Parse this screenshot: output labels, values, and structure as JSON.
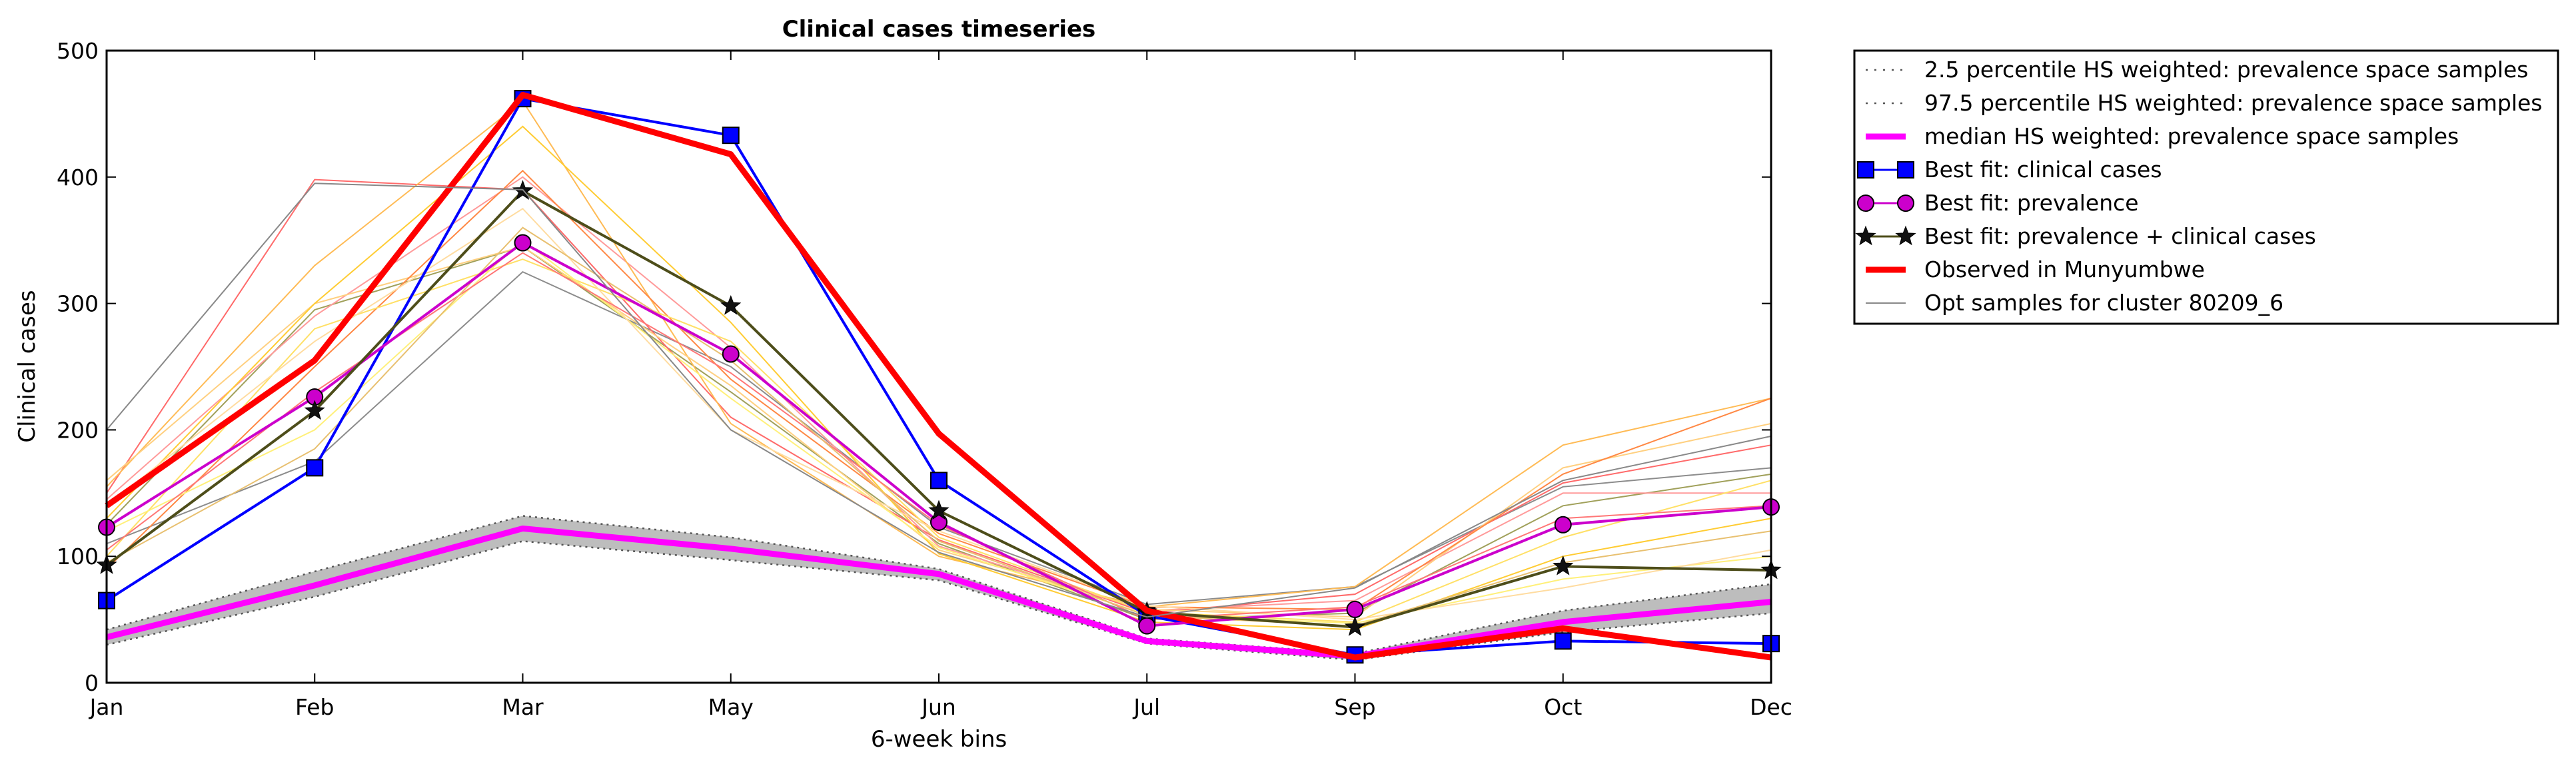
{
  "chart_data": {
    "type": "line",
    "title": "Clinical cases timeseries",
    "xlabel": "6-week bins",
    "ylabel": "Clinical cases",
    "categories": [
      "Jan",
      "Feb",
      "Mar",
      "May",
      "Jun",
      "Jul",
      "Sep",
      "Oct",
      "Dec"
    ],
    "yticks": [
      "0",
      "100",
      "200",
      "300",
      "400",
      "500"
    ],
    "ylim": [
      0,
      500
    ],
    "grid": false,
    "legend_position": "outside right, top",
    "band": {
      "lower": [
        30,
        68,
        112,
        97,
        81,
        31,
        18,
        40,
        55
      ],
      "upper": [
        42,
        88,
        132,
        115,
        90,
        35,
        23,
        57,
        78
      ],
      "fill_color": "#bdbdbd"
    },
    "series": [
      {
        "name": "2.5 percentile HS weighted: prevalence space samples",
        "values": [
          30,
          68,
          112,
          97,
          81,
          31,
          18,
          40,
          55
        ],
        "color": "#555555",
        "style": "dotted"
      },
      {
        "name": "97.5 percentile HS weighted: prevalence space samples",
        "values": [
          42,
          88,
          132,
          115,
          90,
          35,
          23,
          57,
          78
        ],
        "color": "#555555",
        "style": "dotted"
      },
      {
        "name": "median HS weighted: prevalence space samples",
        "values": [
          36,
          77,
          122,
          106,
          86,
          33,
          21,
          48,
          64
        ],
        "color": "#ff00ff",
        "style": "thick"
      },
      {
        "name": "Best fit: clinical cases",
        "values": [
          65,
          170,
          462,
          433,
          160,
          53,
          22,
          33,
          31
        ],
        "color": "#0000ff",
        "marker": "square"
      },
      {
        "name": "Best fit: prevalence",
        "values": [
          123,
          226,
          348,
          260,
          127,
          45,
          58,
          125,
          139
        ],
        "color": "#cc00cc",
        "marker": "circle"
      },
      {
        "name": "Best fit: prevalence + clinical cases",
        "values": [
          93,
          215,
          389,
          298,
          136,
          56,
          44,
          92,
          89
        ],
        "color": "#4d4d1a",
        "marker": "star"
      },
      {
        "name": "Observed in Munyumbwe",
        "values": [
          140,
          255,
          465,
          418,
          197,
          57,
          20,
          43,
          20
        ],
        "color": "#ff0000",
        "style": "thick"
      },
      {
        "name": "Opt samples for cluster 80209_6",
        "values": [
          200,
          395,
          390,
          200,
          103,
          52,
          75,
          160,
          195
        ],
        "color": "#888888"
      }
    ],
    "opt_sample_lines": [
      {
        "values": [
          110,
          175,
          325,
          250,
          123,
          62,
          76,
          155,
          170
        ],
        "color": "#8c8c8c"
      },
      {
        "values": [
          125,
          295,
          345,
          230,
          110,
          50,
          55,
          140,
          165
        ],
        "color": "#a0a05a"
      },
      {
        "values": [
          150,
          398,
          390,
          210,
          113,
          55,
          70,
          158,
          188
        ],
        "color": "#ff6a6a"
      },
      {
        "values": [
          145,
          290,
          400,
          265,
          108,
          57,
          65,
          150,
          150
        ],
        "color": "#ff9a9a"
      },
      {
        "values": [
          155,
          330,
          460,
          205,
          100,
          60,
          76,
          188,
          225
        ],
        "color": "#ffbb55"
      },
      {
        "values": [
          160,
          300,
          345,
          235,
          105,
          58,
          52,
          170,
          205
        ],
        "color": "#ffd080"
      },
      {
        "values": [
          90,
          250,
          405,
          240,
          118,
          60,
          58,
          165,
          225
        ],
        "color": "#ff8844"
      },
      {
        "values": [
          100,
          280,
          335,
          270,
          115,
          56,
          48,
          115,
          160
        ],
        "color": "#ffe066"
      },
      {
        "values": [
          130,
          300,
          440,
          285,
          102,
          48,
          42,
          100,
          130
        ],
        "color": "#ffcc33"
      },
      {
        "values": [
          120,
          200,
          350,
          225,
          107,
          54,
          47,
          82,
          100
        ],
        "color": "#fff07a"
      },
      {
        "values": [
          140,
          270,
          375,
          200,
          120,
          61,
          50,
          75,
          105
        ],
        "color": "#ffdca0"
      },
      {
        "values": [
          105,
          230,
          340,
          245,
          125,
          50,
          60,
          130,
          140
        ],
        "color": "#ff7777"
      },
      {
        "values": [
          95,
          185,
          360,
          255,
          112,
          53,
          45,
          95,
          120
        ],
        "color": "#e8c070"
      }
    ]
  }
}
